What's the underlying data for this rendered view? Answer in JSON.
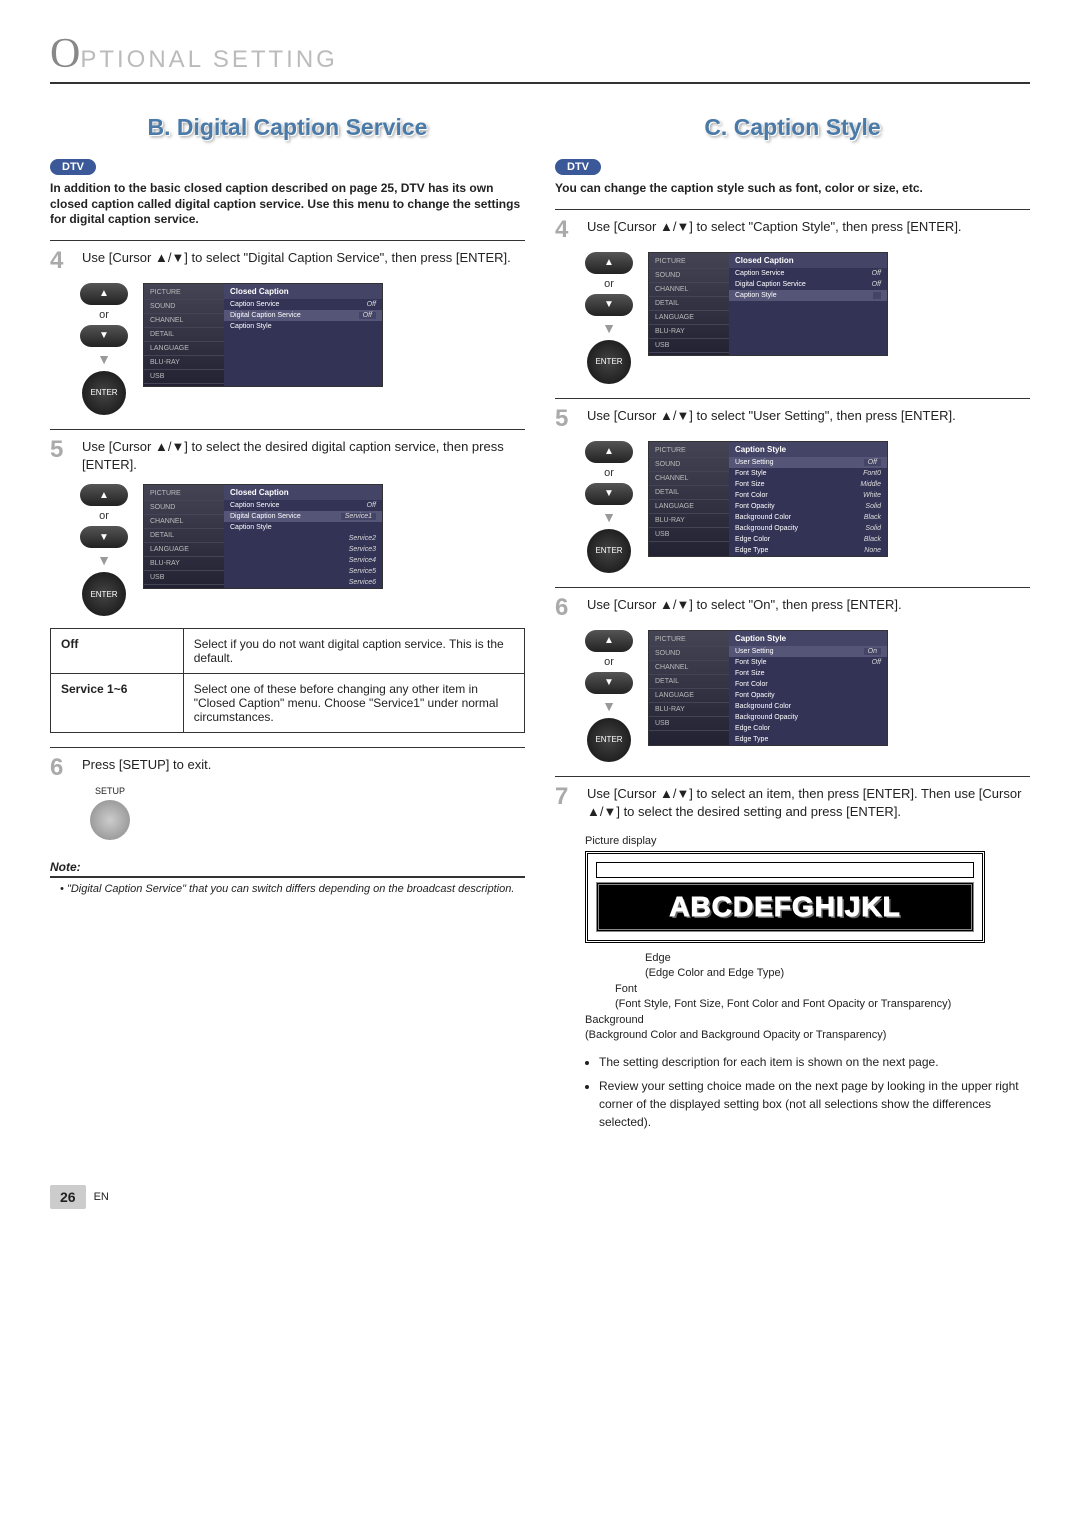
{
  "header": {
    "letter": "O",
    "title": "PTIONAL   SETTING"
  },
  "sectionB": {
    "title": "B.  Digital Caption Service",
    "dtv": "DTV",
    "intro": "In addition to the basic closed caption described on page 25, DTV has its own closed caption called digital caption service. Use this menu to change the settings for digital caption service.",
    "step4": "Use [Cursor ▲/▼] to select \"Digital Caption Service\", then press [ENTER].",
    "step5": "Use [Cursor ▲/▼] to select the desired digital caption service, then press [ENTER].",
    "step6": "Press [SETUP] to exit.",
    "or": "or",
    "enter": "ENTER",
    "setup": "SETUP",
    "osd": {
      "menu": [
        "PICTURE",
        "SOUND",
        "CHANNEL",
        "DETAIL",
        "LANGUAGE",
        "BLU-RAY",
        "USB"
      ],
      "title": "Closed Caption",
      "items4": [
        {
          "label": "Caption Service",
          "val": "Off"
        },
        {
          "label": "Digital Caption Service",
          "val": "Off",
          "sel": true
        },
        {
          "label": "Caption Style",
          "val": ""
        }
      ],
      "items5": [
        {
          "label": "Caption Service",
          "val": "Off"
        },
        {
          "label": "Digital Caption Service",
          "val": "Service1",
          "sel": true
        },
        {
          "label": "Caption Style",
          "vals": [
            "Service2",
            "Service3",
            "Service4",
            "Service5",
            "Service6"
          ]
        }
      ]
    },
    "table": {
      "r1k": "Off",
      "r1v": "Select if you do not want digital caption service. This is the default.",
      "r2k": "Service 1~6",
      "r2v": "Select one of these before changing any other item in \"Closed Caption\" menu. Choose \"Service1\" under normal circumstances."
    },
    "note": {
      "title": "Note:",
      "body": "\"Digital Caption Service\" that you can switch differs depending on the broadcast description."
    }
  },
  "sectionC": {
    "title": "C.  Caption Style",
    "dtv": "DTV",
    "intro": "You can change the caption style such as font, color or size, etc.",
    "step4": "Use [Cursor ▲/▼] to select \"Caption Style\", then press [ENTER].",
    "step5": "Use [Cursor ▲/▼] to select \"User Setting\", then press [ENTER].",
    "step6": "Use [Cursor ▲/▼] to select \"On\", then press [ENTER].",
    "step7": "Use [Cursor ▲/▼] to select an item, then press [ENTER]. Then use [Cursor ▲/▼] to select the desired setting and press [ENTER].",
    "or": "or",
    "enter": "ENTER",
    "osd": {
      "title4": "Closed Caption",
      "items4": [
        {
          "label": "Caption Service",
          "val": "Off"
        },
        {
          "label": "Digital Caption Service",
          "val": "Off"
        },
        {
          "label": "Caption Style",
          "val": "",
          "sel": true
        }
      ],
      "title5": "Caption Style",
      "items5": [
        {
          "label": "User Setting",
          "val": "Off",
          "sel": true
        },
        {
          "label": "Font Style",
          "val": "Font0"
        },
        {
          "label": "Font Size",
          "val": "Middle"
        },
        {
          "label": "Font Color",
          "val": "White"
        },
        {
          "label": "Font Opacity",
          "val": "Solid"
        },
        {
          "label": "Background Color",
          "val": "Black"
        },
        {
          "label": "Background Opacity",
          "val": "Solid"
        },
        {
          "label": "Edge Color",
          "val": "Black"
        },
        {
          "label": "Edge Type",
          "val": "None"
        }
      ],
      "title6": "Caption Style",
      "items6": [
        {
          "label": "User Setting",
          "val": "On",
          "sel": true
        },
        {
          "label": "Font Style",
          "val": "Off"
        },
        {
          "label": "Font Size",
          "val": ""
        },
        {
          "label": "Font Color",
          "val": ""
        },
        {
          "label": "Font Opacity",
          "val": ""
        },
        {
          "label": "Background Color",
          "val": ""
        },
        {
          "label": "Background Opacity",
          "val": ""
        },
        {
          "label": "Edge Color",
          "val": ""
        },
        {
          "label": "Edge Type",
          "val": ""
        }
      ]
    },
    "picture": {
      "label": "Picture display",
      "sample": "ABCDEFGHIJKL",
      "edgeLabel": "Edge",
      "edgeDesc": "(Edge Color and Edge Type)",
      "fontLabel": "Font",
      "fontDesc": "(Font Style, Font Size, Font Color and Font Opacity or Transparency)",
      "bgLabel": "Background",
      "bgDesc": "(Background Color and Background Opacity or Transparency)"
    },
    "bullets": [
      "The setting description for each item is shown on the next page.",
      "Review your setting choice made on the next page by looking in the upper right corner of the displayed setting box (not all selections show the differences selected)."
    ]
  },
  "footer": {
    "page": "26",
    "lang": "EN"
  }
}
